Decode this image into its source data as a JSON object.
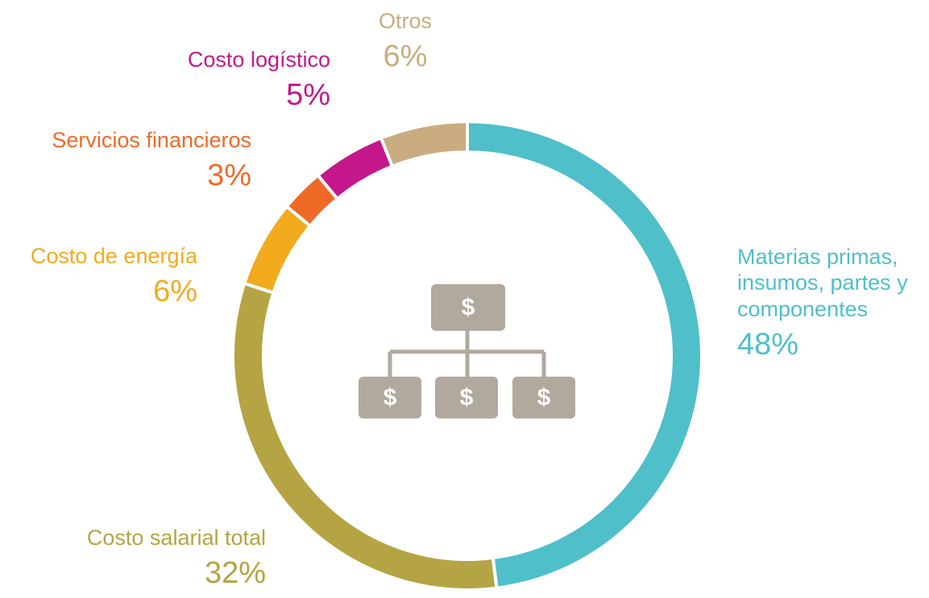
{
  "chart_data": {
    "type": "donut",
    "categories": [
      "Materias primas, insumos, partes y componentes",
      "Costo salarial total",
      "Costo de energía",
      "Servicios financieros",
      "Costo logístico",
      "Otros"
    ],
    "values": [
      48,
      32,
      6,
      3,
      5,
      6
    ],
    "value_labels": [
      "48%",
      "32%",
      "6%",
      "3%",
      "5%",
      "6%"
    ],
    "colors": [
      "#4fbfca",
      "#b5a444",
      "#f3ab1e",
      "#ef6a27",
      "#c4178c",
      "#c9ad80"
    ],
    "icon_symbol": "$"
  }
}
